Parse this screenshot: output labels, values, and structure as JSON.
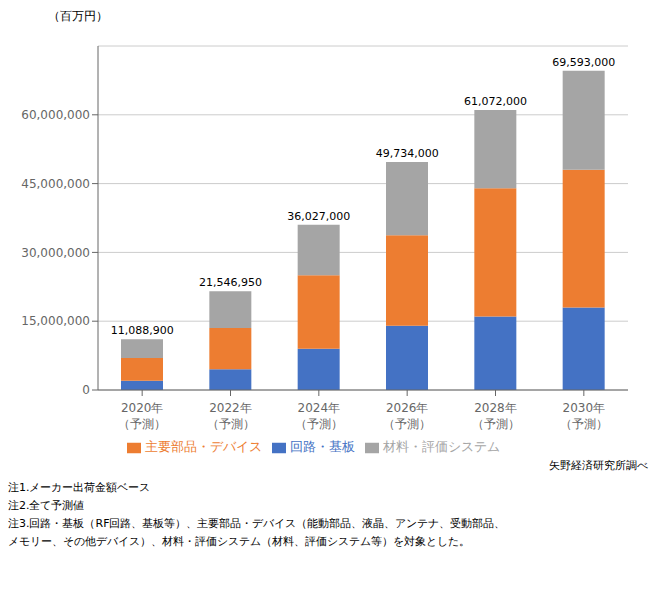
{
  "chart_data": {
    "type": "bar",
    "stacked": true,
    "categories": [
      "2020年\n（予測）",
      "2022年\n（予測）",
      "2024年\n（予測）",
      "2026年\n（予測）",
      "2028年\n（予測）",
      "2030年\n（予測）"
    ],
    "series": [
      {
        "name": "回路・基板",
        "color": "#4472C4",
        "values": [
          2000000,
          4500000,
          9000000,
          14000000,
          16000000,
          18000000
        ]
      },
      {
        "name": "主要部品・デバイス",
        "color": "#ED7D31",
        "values": [
          5000000,
          9000000,
          16000000,
          19734000,
          28000000,
          30000000
        ]
      },
      {
        "name": "材料・評価システム",
        "color": "#A5A5A5",
        "values": [
          4088900,
          8046950,
          11027000,
          16000000,
          17072000,
          21593000
        ]
      }
    ],
    "totals": {
      "values": [
        11088900,
        21546950,
        36027000,
        49734000,
        61072000,
        69593000
      ],
      "value_labels": [
        "11,088,900",
        "21,546,950",
        "36,027,000",
        "49,734,000",
        "61,072,000",
        "69,593,000"
      ]
    },
    "y_label": "（百万円）",
    "ylim": [
      0,
      75000000
    ],
    "yticks": [
      0,
      {
        "value": 15000000,
        "label": "15,000,000"
      },
      {
        "value": 30000000,
        "label": "30,000,000"
      },
      {
        "value": 45000000,
        "label": "45,000,000"
      },
      {
        "value": 60000000,
        "label": "60,000,000"
      }
    ],
    "grid": true,
    "legend": "bottom",
    "source": "矢野経済研究所調べ",
    "notes": [
      "注1.メーカー出荷金額ベース",
      "注2.全て予測値",
      "注3.回路・基板（RF回路、基板等）、主要部品・デバイス（能動部品、液晶、アンテナ、受動部品、",
      "メモリー、その他デバイス）、材料・評価システム（材料、評価システム等）を対象とした。"
    ]
  }
}
